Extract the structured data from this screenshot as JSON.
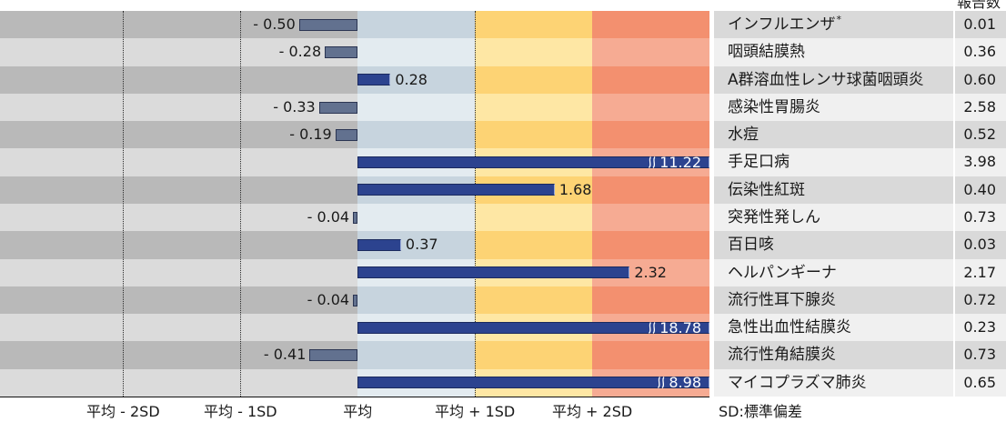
{
  "chart_data": {
    "type": "bar",
    "orientation": "horizontal",
    "categories": [
      "インフルエンザ",
      "咽頭結膜熱",
      "A群溶血性レンサ球菌咽頭炎",
      "感染性胃腸炎",
      "水痘",
      "手足口病",
      "伝染性紅斑",
      "突発性発しん",
      "百日咳",
      "ヘルパンギーナ",
      "流行性耳下腺炎",
      "急性出血性結膜炎",
      "流行性角結膜炎",
      "マイコプラズマ肺炎"
    ],
    "category_notes": [
      "*",
      "",
      "",
      "",
      "",
      "",
      "",
      "",
      "",
      "",
      "",
      "",
      "",
      ""
    ],
    "values": [
      -0.5,
      -0.28,
      0.28,
      -0.33,
      -0.19,
      11.22,
      1.68,
      -0.04,
      0.37,
      2.32,
      -0.04,
      18.78,
      -0.41,
      8.98
    ],
    "value_labels": [
      "- 0.50",
      "- 0.28",
      "0.28",
      "- 0.33",
      "- 0.19",
      "11.22",
      "1.68",
      "- 0.04",
      "0.37",
      "2.32",
      "- 0.04",
      "18.78",
      "- 0.41",
      "8.98"
    ],
    "count_header": "報告数",
    "report_counts": [
      "0.01",
      "0.36",
      "0.60",
      "2.58",
      "0.52",
      "3.98",
      "0.40",
      "0.73",
      "0.03",
      "2.17",
      "0.72",
      "0.23",
      "0.73",
      "0.65"
    ],
    "xlim": [
      -3.05,
      3.0
    ],
    "x_ticks": [
      {
        "value": -2,
        "label": "平均 - 2SD"
      },
      {
        "value": -1,
        "label": "平均 - 1SD"
      },
      {
        "value": 0,
        "label": "平均"
      },
      {
        "value": 1,
        "label": "平均 + 1SD"
      },
      {
        "value": 2,
        "label": "平均 + 2SD"
      }
    ],
    "reference_lines": [
      -2,
      -1,
      1
    ],
    "zone_edges": [
      0,
      1,
      2
    ],
    "footnote": "SD:標準偏差",
    "grid": false,
    "colors": {
      "zones": [
        [
          "#b9b9b9",
          "#dbdbdb"
        ],
        [
          "#c7d4de",
          "#e3ebf0"
        ],
        [
          "#fdd374",
          "#fee7a4"
        ],
        [
          "#f3906f",
          "#f6ab93"
        ]
      ],
      "table_rows": [
        "#d9d9d9",
        "#f0f0f0"
      ],
      "bar_positive": "#2c438f",
      "bar_negative": "#62718f"
    }
  }
}
